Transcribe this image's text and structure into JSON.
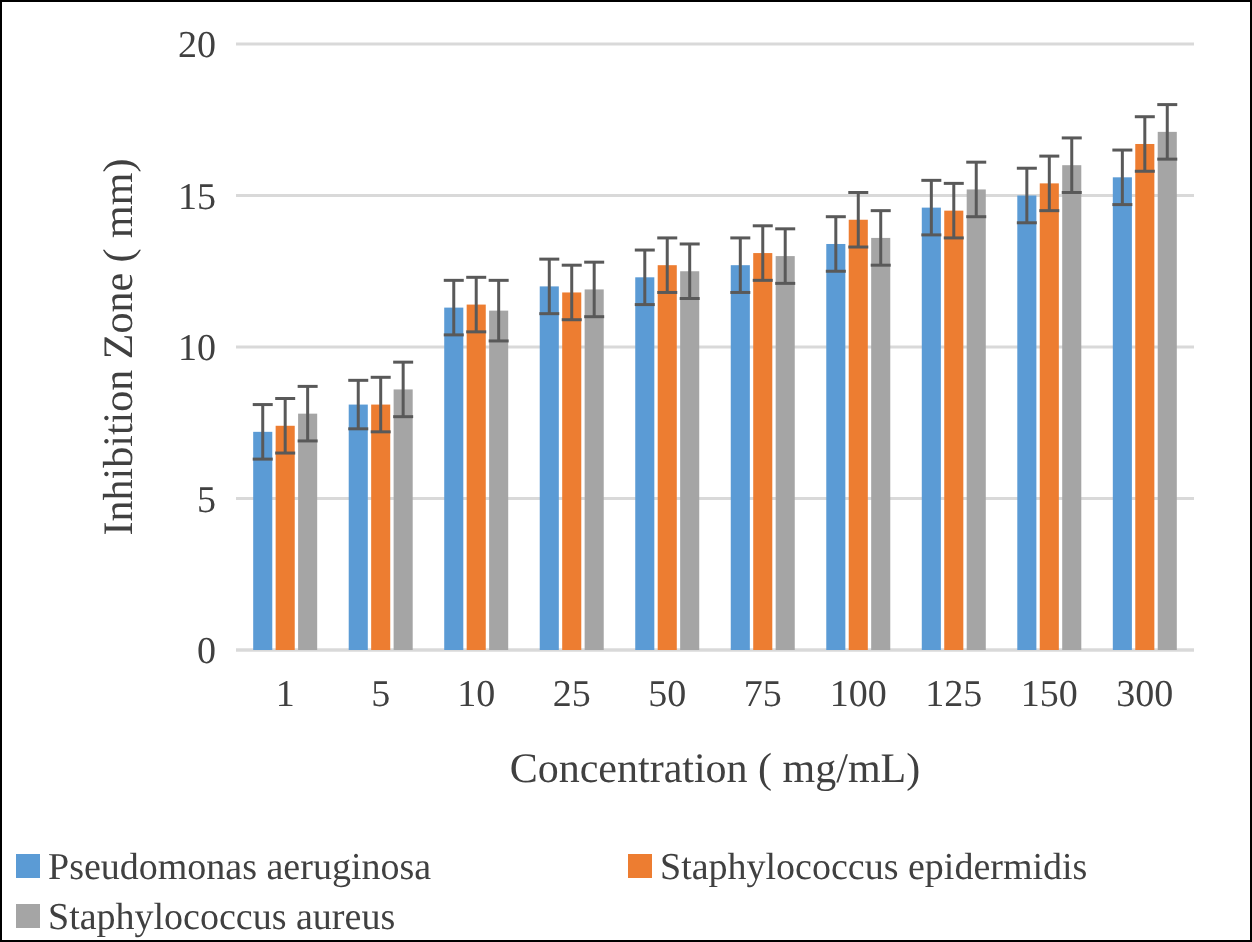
{
  "chart_data": {
    "type": "bar",
    "xlabel": "Concentration ( mg/mL)",
    "ylabel": "Inhibition Zone ( mm)",
    "categories": [
      "1",
      "5",
      "10",
      "25",
      "50",
      "75",
      "100",
      "125",
      "150",
      "300"
    ],
    "series": [
      {
        "name": "Pseudomonas aeruginosa",
        "color": "#5b9bd5",
        "values": [
          7.2,
          8.1,
          11.3,
          12.0,
          12.3,
          12.7,
          13.4,
          14.6,
          15.0,
          15.6
        ],
        "errors": [
          0.9,
          0.8,
          0.9,
          0.9,
          0.9,
          0.9,
          0.9,
          0.9,
          0.9,
          0.9
        ]
      },
      {
        "name": "Staphylococcus epidermidis",
        "color": "#ed7d31",
        "values": [
          7.4,
          8.1,
          11.4,
          11.8,
          12.7,
          13.1,
          14.2,
          14.5,
          15.4,
          16.7
        ],
        "errors": [
          0.9,
          0.9,
          0.9,
          0.9,
          0.9,
          0.9,
          0.9,
          0.9,
          0.9,
          0.9
        ]
      },
      {
        "name": "Staphylococcus aureus",
        "color": "#a5a5a5",
        "values": [
          7.8,
          8.6,
          11.2,
          11.9,
          12.5,
          13.0,
          13.6,
          15.2,
          16.0,
          17.1
        ],
        "errors": [
          0.9,
          0.9,
          1.0,
          0.9,
          0.9,
          0.9,
          0.9,
          0.9,
          0.9,
          0.9
        ]
      }
    ],
    "ylim": [
      0,
      20
    ],
    "yticks": [
      0,
      5,
      10,
      15,
      20
    ],
    "grid": "y",
    "legend": "bottom"
  }
}
